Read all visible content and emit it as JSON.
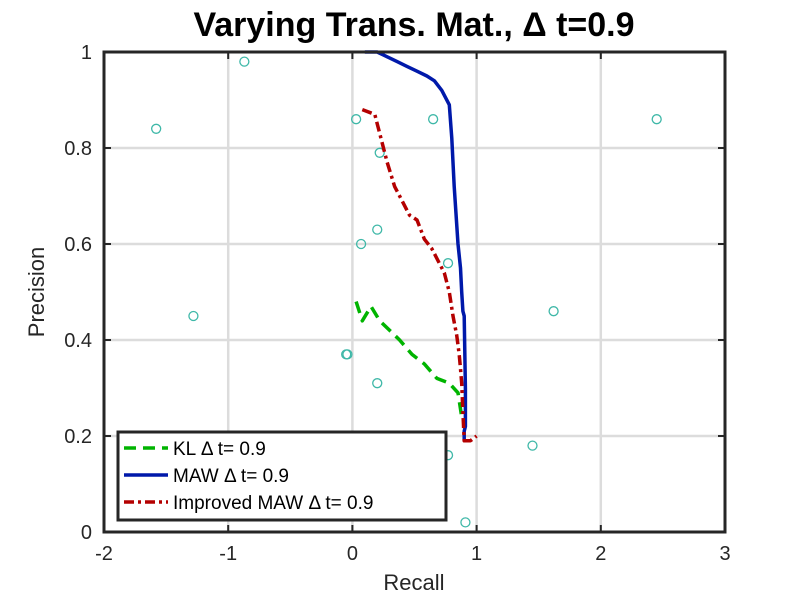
{
  "chart_data": {
    "type": "line",
    "title": "Varying Trans. Mat., Δ t=0.9",
    "xlabel": "Recall",
    "ylabel": "Precision",
    "xlim": [
      -2,
      3
    ],
    "ylim": [
      0,
      1
    ],
    "xticks": [
      -2,
      -1,
      0,
      1,
      2,
      3
    ],
    "yticks": [
      0,
      0.2,
      0.4,
      0.6,
      0.8,
      1
    ],
    "x_tick_labels": [
      "-2",
      "-1",
      "0",
      "1",
      "2",
      "3"
    ],
    "y_tick_labels": [
      "0",
      "0.2",
      "0.4",
      "0.6",
      "0.8",
      "1"
    ],
    "grid": true,
    "legend_position": "bottom-left",
    "series": [
      {
        "name": "KL Δ t= 0.9",
        "color": "#00b400",
        "style": "dashed",
        "x": [
          0.03,
          0.08,
          0.15,
          0.22,
          0.3,
          0.38,
          0.48,
          0.58,
          0.68,
          0.78,
          0.85,
          0.88
        ],
        "y": [
          0.48,
          0.44,
          0.47,
          0.44,
          0.42,
          0.4,
          0.37,
          0.35,
          0.32,
          0.31,
          0.29,
          0.24
        ]
      },
      {
        "name": "MAW Δ t= 0.9",
        "color": "#0019aa",
        "style": "solid",
        "x": [
          0.1,
          0.2,
          0.28,
          0.36,
          0.44,
          0.52,
          0.6,
          0.66,
          0.72,
          0.78,
          0.8,
          0.82,
          0.85,
          0.87,
          0.88,
          0.89,
          0.9,
          0.91,
          0.91,
          0.9,
          0.9
        ],
        "y": [
          1.0,
          1.0,
          0.99,
          0.98,
          0.97,
          0.96,
          0.95,
          0.94,
          0.92,
          0.89,
          0.82,
          0.72,
          0.6,
          0.55,
          0.5,
          0.46,
          0.45,
          0.3,
          0.22,
          0.21,
          0.19
        ]
      },
      {
        "name": "Improved MAW Δ t= 0.9",
        "color": "#b40000",
        "style": "dashdot",
        "x": [
          0.08,
          0.18,
          0.23,
          0.28,
          0.34,
          0.4,
          0.46,
          0.52,
          0.58,
          0.64,
          0.7,
          0.74,
          0.78,
          0.81,
          0.84,
          0.86,
          0.87,
          0.88,
          0.89,
          0.9,
          0.9,
          0.95,
          1.0
        ],
        "y": [
          0.88,
          0.87,
          0.82,
          0.77,
          0.72,
          0.69,
          0.66,
          0.65,
          0.61,
          0.59,
          0.56,
          0.54,
          0.5,
          0.45,
          0.41,
          0.37,
          0.34,
          0.31,
          0.25,
          0.19,
          0.19,
          0.19,
          0.2
        ]
      }
    ],
    "scatter": {
      "color": "#3fb8a8",
      "points": [
        [
          -0.87,
          0.98
        ],
        [
          -1.58,
          0.84
        ],
        [
          0.03,
          0.86
        ],
        [
          0.65,
          0.86
        ],
        [
          2.45,
          0.86
        ],
        [
          0.22,
          0.79
        ],
        [
          0.2,
          0.63
        ],
        [
          0.07,
          0.6
        ],
        [
          0.77,
          0.56
        ],
        [
          -1.28,
          0.45
        ],
        [
          1.62,
          0.46
        ],
        [
          -0.05,
          0.37
        ],
        [
          -0.04,
          0.37
        ],
        [
          0.2,
          0.31
        ],
        [
          1.45,
          0.18
        ],
        [
          0.77,
          0.16
        ],
        [
          0.91,
          0.02
        ]
      ]
    }
  }
}
